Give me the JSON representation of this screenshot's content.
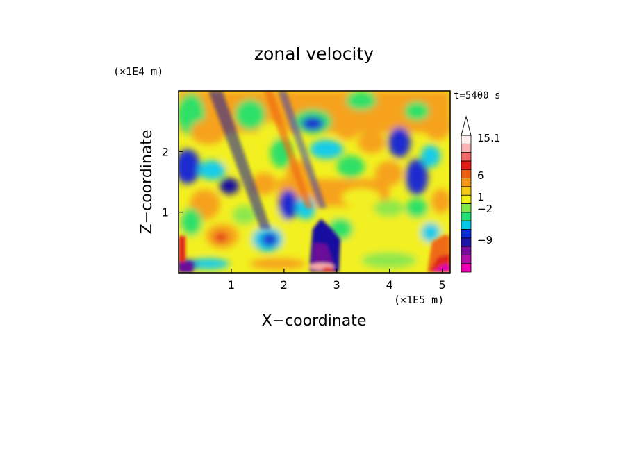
{
  "chart_data": {
    "type": "heatmap",
    "title": "zonal velocity",
    "xlabel": "X−coordinate",
    "ylabel": "Z−coordinate",
    "x_unit_label": "(×1E5 m)",
    "y_unit_label": "(×1E4 m)",
    "time_label": "t=5400 s",
    "xlim": [
      0,
      5.15
    ],
    "ylim": [
      0,
      3.0
    ],
    "x_ticks": [
      1,
      2,
      3,
      4,
      5
    ],
    "x_tick_labels": [
      "1",
      "2",
      "3",
      "4",
      "5"
    ],
    "y_ticks": [
      1,
      2
    ],
    "y_tick_labels": [
      "1",
      "2"
    ],
    "colorbar": {
      "labels": [
        {
          "level": 15.1,
          "text": "15.1"
        },
        {
          "level": 6,
          "text": "6"
        },
        {
          "level": 1,
          "text": "1"
        },
        {
          "level": -2,
          "text": "−2"
        },
        {
          "level": -9,
          "text": "−9"
        }
      ],
      "colors": [
        "#f000b4",
        "#b00fa8",
        "#7a0c9c",
        "#1f14a8",
        "#0a2cd6",
        "#00c8e6",
        "#22e070",
        "#7ee84a",
        "#f0f018",
        "#f4c814",
        "#f49614",
        "#ea6012",
        "#e02018",
        "#f06a6a",
        "#f8b4b4",
        "#fff0f0"
      ]
    }
  }
}
